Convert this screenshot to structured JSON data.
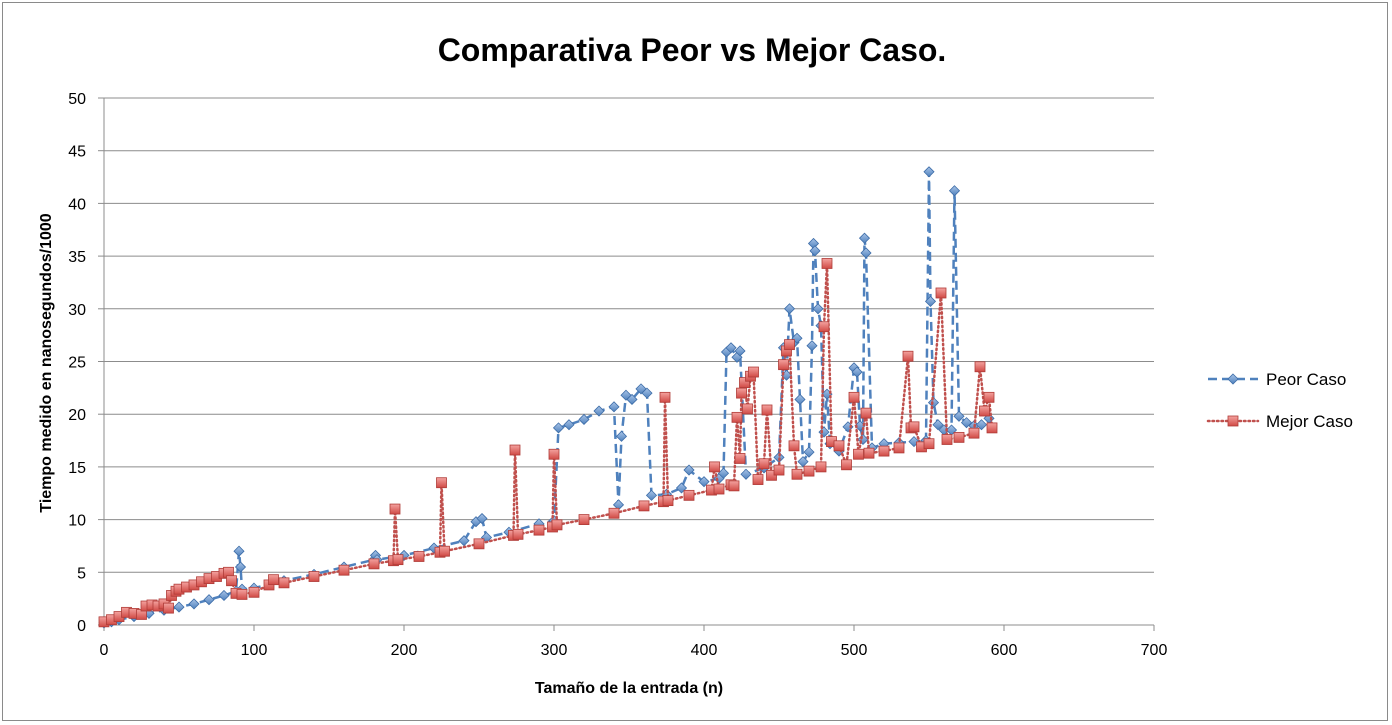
{
  "chart_data": {
    "type": "line",
    "title": "Comparativa Peor vs Mejor Caso.",
    "xlabel": "Tamaño de la entrada (n)",
    "ylabel": "Tiempo medido en nanosegundos/1000",
    "xlim": [
      0,
      700
    ],
    "ylim": [
      0,
      50
    ],
    "x_ticks": [
      0,
      100,
      200,
      300,
      400,
      500,
      600,
      700
    ],
    "y_ticks": [
      0,
      5,
      10,
      15,
      20,
      25,
      30,
      35,
      40,
      45,
      50
    ],
    "grid": "horizontal",
    "legend": "right",
    "series": [
      {
        "name": "Peor Caso",
        "color": "#4F81BD",
        "line_style": "dashed",
        "marker": "diamond",
        "points": [
          [
            0,
            0.2
          ],
          [
            5,
            0.3
          ],
          [
            10,
            0.5
          ],
          [
            20,
            0.8
          ],
          [
            30,
            1.1
          ],
          [
            40,
            1.4
          ],
          [
            50,
            1.7
          ],
          [
            60,
            2.0
          ],
          [
            70,
            2.4
          ],
          [
            80,
            2.8
          ],
          [
            88,
            3.2
          ],
          [
            90,
            7.0
          ],
          [
            91,
            5.5
          ],
          [
            92,
            3.4
          ],
          [
            100,
            3.5
          ],
          [
            120,
            4.2
          ],
          [
            140,
            4.8
          ],
          [
            160,
            5.5
          ],
          [
            180,
            6.2
          ],
          [
            181,
            6.6
          ],
          [
            182,
            6.2
          ],
          [
            200,
            6.6
          ],
          [
            220,
            7.3
          ],
          [
            240,
            8.0
          ],
          [
            248,
            9.8
          ],
          [
            252,
            10.1
          ],
          [
            255,
            8.3
          ],
          [
            270,
            8.8
          ],
          [
            290,
            9.6
          ],
          [
            300,
            9.9
          ],
          [
            303,
            18.7
          ],
          [
            310,
            19.0
          ],
          [
            320,
            19.5
          ],
          [
            330,
            20.3
          ],
          [
            340,
            20.7
          ],
          [
            343,
            11.4
          ],
          [
            345,
            17.9
          ],
          [
            348,
            21.8
          ],
          [
            352,
            21.4
          ],
          [
            358,
            22.4
          ],
          [
            362,
            22.0
          ],
          [
            365,
            12.3
          ],
          [
            375,
            12.4
          ],
          [
            385,
            13.0
          ],
          [
            390,
            14.7
          ],
          [
            400,
            13.6
          ],
          [
            410,
            13.9
          ],
          [
            413,
            14.4
          ],
          [
            415,
            25.9
          ],
          [
            418,
            26.3
          ],
          [
            422,
            25.4
          ],
          [
            424,
            26.0
          ],
          [
            428,
            14.3
          ],
          [
            440,
            14.9
          ],
          [
            450,
            15.9
          ],
          [
            453,
            26.3
          ],
          [
            455,
            23.7
          ],
          [
            457,
            30.0
          ],
          [
            460,
            26.8
          ],
          [
            462,
            27.2
          ],
          [
            464,
            21.4
          ],
          [
            466,
            15.5
          ],
          [
            470,
            16.4
          ],
          [
            472,
            26.5
          ],
          [
            473,
            36.2
          ],
          [
            474,
            35.5
          ],
          [
            476,
            30.0
          ],
          [
            478,
            28.4
          ],
          [
            480,
            18.3
          ],
          [
            482,
            21.9
          ],
          [
            484,
            17.2
          ],
          [
            490,
            16.5
          ],
          [
            496,
            18.8
          ],
          [
            500,
            24.4
          ],
          [
            502,
            24.0
          ],
          [
            504,
            18.9
          ],
          [
            506,
            17.6
          ],
          [
            507,
            36.7
          ],
          [
            508,
            35.3
          ],
          [
            512,
            16.8
          ],
          [
            520,
            17.2
          ],
          [
            530,
            17.3
          ],
          [
            540,
            17.4
          ],
          [
            548,
            17.5
          ],
          [
            550,
            43.0
          ],
          [
            551,
            30.7
          ],
          [
            553,
            21.1
          ],
          [
            556,
            19.0
          ],
          [
            560,
            18.5
          ],
          [
            565,
            18.5
          ],
          [
            567,
            41.2
          ],
          [
            570,
            19.8
          ],
          [
            575,
            19.2
          ],
          [
            580,
            18.9
          ],
          [
            585,
            19.0
          ],
          [
            590,
            19.6
          ]
        ]
      },
      {
        "name": "Mejor Caso",
        "color": "#C0504D",
        "line_style": "dotted",
        "marker": "square",
        "points": [
          [
            0,
            0.3
          ],
          [
            5,
            0.5
          ],
          [
            10,
            0.8
          ],
          [
            15,
            1.2
          ],
          [
            20,
            1.1
          ],
          [
            25,
            1.0
          ],
          [
            28,
            1.8
          ],
          [
            32,
            1.9
          ],
          [
            36,
            1.8
          ],
          [
            40,
            2.0
          ],
          [
            43,
            1.6
          ],
          [
            45,
            2.8
          ],
          [
            48,
            3.2
          ],
          [
            50,
            3.4
          ],
          [
            55,
            3.6
          ],
          [
            60,
            3.8
          ],
          [
            65,
            4.1
          ],
          [
            70,
            4.4
          ],
          [
            75,
            4.6
          ],
          [
            80,
            4.9
          ],
          [
            83,
            5.0
          ],
          [
            85,
            4.2
          ],
          [
            88,
            3.0
          ],
          [
            92,
            2.9
          ],
          [
            100,
            3.1
          ],
          [
            110,
            3.8
          ],
          [
            113,
            4.3
          ],
          [
            120,
            4.0
          ],
          [
            140,
            4.6
          ],
          [
            160,
            5.2
          ],
          [
            180,
            5.8
          ],
          [
            193,
            6.1
          ],
          [
            194,
            11.0
          ],
          [
            196,
            6.2
          ],
          [
            210,
            6.5
          ],
          [
            224,
            6.9
          ],
          [
            225,
            13.5
          ],
          [
            227,
            7.0
          ],
          [
            250,
            7.7
          ],
          [
            273,
            8.5
          ],
          [
            274,
            16.6
          ],
          [
            276,
            8.6
          ],
          [
            290,
            9.0
          ],
          [
            299,
            9.3
          ],
          [
            300,
            16.2
          ],
          [
            302,
            9.5
          ],
          [
            320,
            10.0
          ],
          [
            340,
            10.6
          ],
          [
            360,
            11.3
          ],
          [
            373,
            11.7
          ],
          [
            374,
            21.6
          ],
          [
            376,
            11.8
          ],
          [
            390,
            12.3
          ],
          [
            405,
            12.8
          ],
          [
            407,
            15.0
          ],
          [
            410,
            12.9
          ],
          [
            418,
            13.3
          ],
          [
            420,
            13.2
          ],
          [
            422,
            19.7
          ],
          [
            424,
            15.8
          ],
          [
            425,
            22.0
          ],
          [
            427,
            23.0
          ],
          [
            429,
            20.5
          ],
          [
            431,
            23.6
          ],
          [
            433,
            24.0
          ],
          [
            436,
            13.8
          ],
          [
            440,
            15.3
          ],
          [
            442,
            20.4
          ],
          [
            445,
            14.2
          ],
          [
            450,
            14.7
          ],
          [
            453,
            24.7
          ],
          [
            455,
            26.0
          ],
          [
            457,
            26.6
          ],
          [
            460,
            17.0
          ],
          [
            462,
            14.3
          ],
          [
            470,
            14.6
          ],
          [
            478,
            15.0
          ],
          [
            480,
            28.3
          ],
          [
            482,
            34.3
          ],
          [
            485,
            17.4
          ],
          [
            490,
            17.0
          ],
          [
            495,
            15.2
          ],
          [
            500,
            21.6
          ],
          [
            503,
            16.2
          ],
          [
            508,
            20.1
          ],
          [
            510,
            16.3
          ],
          [
            520,
            16.5
          ],
          [
            530,
            16.8
          ],
          [
            536,
            25.5
          ],
          [
            538,
            18.7
          ],
          [
            540,
            18.8
          ],
          [
            545,
            16.9
          ],
          [
            550,
            17.2
          ],
          [
            558,
            31.5
          ],
          [
            562,
            17.6
          ],
          [
            570,
            17.8
          ],
          [
            580,
            18.2
          ],
          [
            584,
            24.5
          ],
          [
            587,
            20.3
          ],
          [
            590,
            21.6
          ],
          [
            592,
            18.7
          ]
        ]
      }
    ]
  }
}
